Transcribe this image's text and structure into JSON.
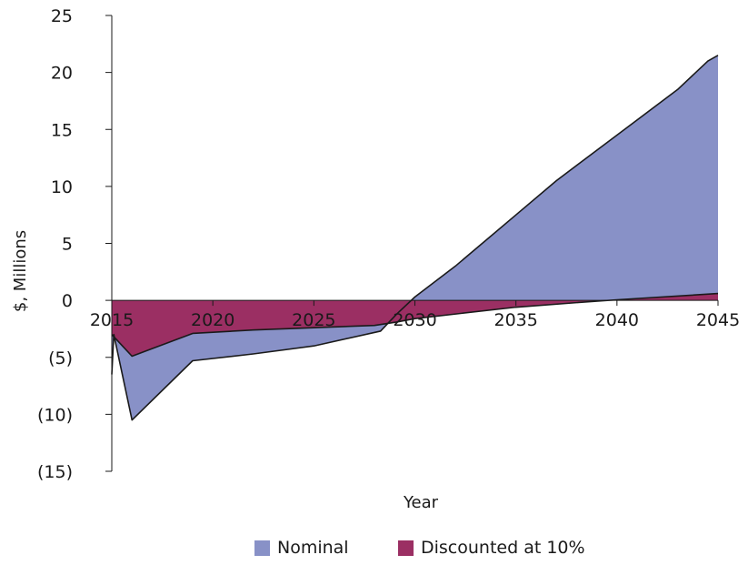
{
  "chart_data": {
    "type": "area",
    "title": "",
    "xlabel": "Year",
    "ylabel": "$, Millions",
    "xlim": [
      2015,
      2045
    ],
    "ylim": [
      -15,
      25
    ],
    "x_ticks": [
      "2015",
      "2020",
      "2025",
      "2030",
      "2035",
      "2040",
      "2045"
    ],
    "y_ticks": [
      "25",
      "20",
      "15",
      "10",
      "5",
      "0",
      "(5)",
      "(10)",
      "(15)"
    ],
    "grid": false,
    "legend_position": "bottom",
    "series": [
      {
        "name": "Nominal",
        "color": "#8891c7",
        "points": [
          [
            2015,
            -6.5
          ],
          [
            2015.1,
            -3
          ],
          [
            2016,
            -10.5
          ],
          [
            2019,
            -5.3
          ],
          [
            2022,
            -4.7
          ],
          [
            2025,
            -4
          ],
          [
            2028.3,
            -2.7
          ],
          [
            2029.1,
            -1.2
          ],
          [
            2030,
            0.3
          ],
          [
            2032,
            3
          ],
          [
            2035,
            7.5
          ],
          [
            2037,
            10.5
          ],
          [
            2040,
            14.5
          ],
          [
            2043,
            18.5
          ],
          [
            2044.5,
            21
          ],
          [
            2045,
            21.5
          ]
        ]
      },
      {
        "name": "Discounted at 10%",
        "color": "#9b2f63",
        "points": [
          [
            2015,
            -3
          ],
          [
            2016,
            -4.9
          ],
          [
            2019,
            -2.9
          ],
          [
            2022,
            -2.6
          ],
          [
            2025,
            -2.4
          ],
          [
            2028,
            -2.2
          ],
          [
            2029.1,
            -1.9
          ],
          [
            2030,
            -1.6
          ],
          [
            2035,
            -0.6
          ],
          [
            2038,
            -0.2
          ],
          [
            2040,
            0.05
          ],
          [
            2045,
            0.6
          ]
        ]
      }
    ]
  },
  "legend": {
    "items": [
      {
        "label": "Nominal",
        "color": "#8891c7"
      },
      {
        "label": "Discounted at 10%",
        "color": "#9b2f63"
      }
    ]
  }
}
